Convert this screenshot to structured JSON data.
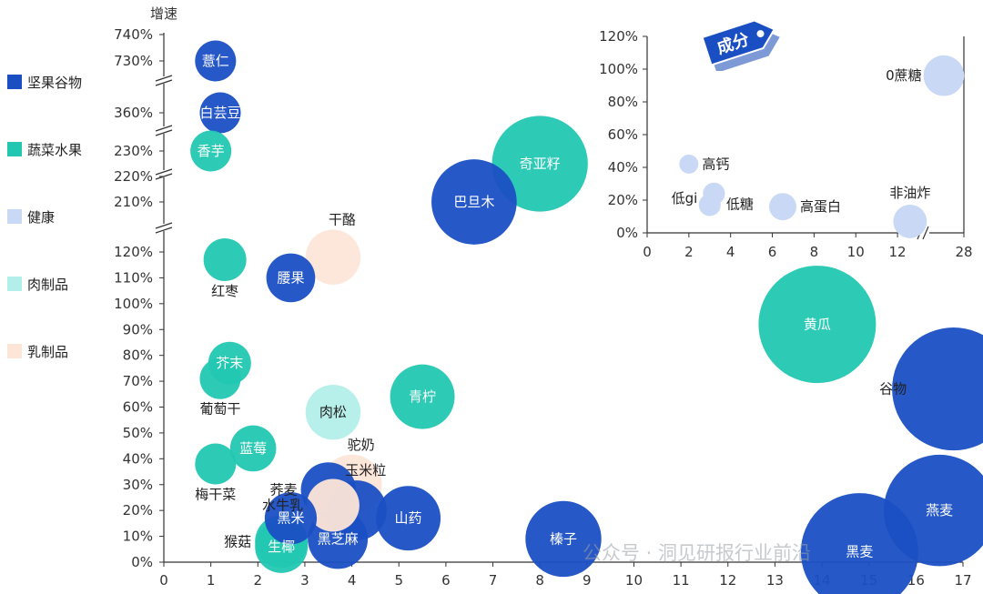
{
  "chart_data": {
    "type": "bubble",
    "y_axis_title": "增速",
    "x_axis": {
      "min": 0,
      "max": 17,
      "ticks": [
        "0",
        "1",
        "2",
        "3",
        "4",
        "5",
        "6",
        "7",
        "8",
        "9",
        "10",
        "11",
        "12",
        "13",
        "14",
        "15",
        "16",
        "17"
      ]
    },
    "y_axis": {
      "broken": true,
      "segments": [
        {
          "ticks": [
            "0%",
            "10%",
            "20%",
            "30%",
            "40%",
            "50%",
            "60%",
            "70%",
            "80%",
            "90%",
            "100%",
            "110%",
            "120%"
          ]
        },
        {
          "ticks": [
            "210%",
            "220%",
            "230%"
          ]
        },
        {
          "ticks": [
            "360%"
          ]
        },
        {
          "ticks": [
            "730%",
            "740%"
          ]
        }
      ]
    },
    "legend": [
      {
        "name": "坚果谷物",
        "color": "#1a4fc4"
      },
      {
        "name": "蔬菜水果",
        "color": "#22c7b2"
      },
      {
        "name": "健康",
        "color": "#c9d9f5"
      },
      {
        "name": "肉制品",
        "color": "#b3efea"
      },
      {
        "name": "乳制品",
        "color": "#fde5d8"
      }
    ],
    "series": [
      {
        "name": "薏仁",
        "category": "坚果谷物",
        "x": 1.1,
        "y": 730,
        "size": 1
      },
      {
        "name": "白芸豆",
        "category": "坚果谷物",
        "x": 1.2,
        "y": 360,
        "size": 1
      },
      {
        "name": "香芋",
        "category": "蔬菜水果",
        "x": 1.0,
        "y": 230,
        "size": 1
      },
      {
        "name": "奇亚籽",
        "category": "蔬菜水果",
        "x": 8.0,
        "y": 225,
        "size": 15
      },
      {
        "name": "巴旦木",
        "category": "坚果谷物",
        "x": 6.6,
        "y": 210,
        "size": 11
      },
      {
        "name": "红枣",
        "category": "蔬菜水果",
        "x": 1.3,
        "y": 117,
        "size": 1.2
      },
      {
        "name": "腰果",
        "category": "坚果谷物",
        "x": 2.7,
        "y": 110,
        "size": 2
      },
      {
        "name": "干酪",
        "category": "乳制品",
        "x": 3.6,
        "y": 118,
        "size": 3
      },
      {
        "name": "黄瓜",
        "category": "蔬菜水果",
        "x": 13.9,
        "y": 92,
        "size": 25
      },
      {
        "name": "谷物",
        "category": "坚果谷物",
        "x": 16.8,
        "y": 67,
        "size": 28
      },
      {
        "name": "芥末",
        "category": "蔬菜水果",
        "x": 1.4,
        "y": 77,
        "size": 1.2
      },
      {
        "name": "葡萄干",
        "category": "蔬菜水果",
        "x": 1.2,
        "y": 71,
        "size": 1
      },
      {
        "name": "肉松",
        "category": "肉制品",
        "x": 3.6,
        "y": 58,
        "size": 3
      },
      {
        "name": "青柠",
        "category": "蔬菜水果",
        "x": 5.5,
        "y": 64,
        "size": 5
      },
      {
        "name": "蓝莓",
        "category": "蔬菜水果",
        "x": 1.9,
        "y": 44,
        "size": 1.6
      },
      {
        "name": "梅干菜",
        "category": "蔬菜水果",
        "x": 1.1,
        "y": 38,
        "size": 1
      },
      {
        "name": "荞麦",
        "category": "坚果谷物",
        "x": 3.5,
        "y": 28,
        "size": 3
      },
      {
        "name": "驼奶",
        "category": "乳制品",
        "x": 4.0,
        "y": 30,
        "size": 4
      },
      {
        "name": "玉米粒",
        "category": "坚果谷物",
        "x": 4.1,
        "y": 20,
        "size": 4
      },
      {
        "name": "水牛乳",
        "category": "乳制品",
        "x": 3.6,
        "y": 22,
        "size": 2.6
      },
      {
        "name": "黑米",
        "category": "坚果谷物",
        "x": 2.7,
        "y": 17,
        "size": 2.5
      },
      {
        "name": "猴菇",
        "category": "蔬菜水果",
        "x": 2.5,
        "y": 8,
        "size": 2.6
      },
      {
        "name": "生椰",
        "category": "蔬菜水果",
        "x": 2.5,
        "y": 6,
        "size": 2.6
      },
      {
        "name": "黑芝麻",
        "category": "坚果谷物",
        "x": 3.7,
        "y": 9,
        "size": 4
      },
      {
        "name": "山药",
        "category": "坚果谷物",
        "x": 5.2,
        "y": 17,
        "size": 5
      },
      {
        "name": "榛子",
        "category": "坚果谷物",
        "x": 8.5,
        "y": 9,
        "size": 8
      },
      {
        "name": "黑麦",
        "category": "坚果谷物",
        "x": 14.8,
        "y": 4,
        "size": 25
      },
      {
        "name": "燕麦",
        "category": "坚果谷物",
        "x": 16.5,
        "y": 20,
        "size": 22
      }
    ]
  },
  "inset": {
    "badge": "成分",
    "x_ticks": [
      "0",
      "2",
      "4",
      "6",
      "8",
      "10",
      "12",
      "28"
    ],
    "y_ticks": [
      "0%",
      "20%",
      "40%",
      "60%",
      "80%",
      "100%",
      "120%"
    ],
    "points": [
      {
        "name": "0蔗糖",
        "x": 28,
        "y": 96,
        "size": 3
      },
      {
        "name": "高钙",
        "x": 2.0,
        "y": 42,
        "size": 0.3
      },
      {
        "name": "低gi",
        "x": 3.2,
        "y": 24,
        "size": 0.5
      },
      {
        "name": "低糖",
        "x": 3.0,
        "y": 17,
        "size": 0.5
      },
      {
        "name": "高蛋白",
        "x": 6.5,
        "y": 16,
        "size": 1
      },
      {
        "name": "非油炸",
        "x": 12.6,
        "y": 7,
        "size": 1.8
      }
    ]
  },
  "watermark": "公众号 · 洞见研报行业前沿"
}
